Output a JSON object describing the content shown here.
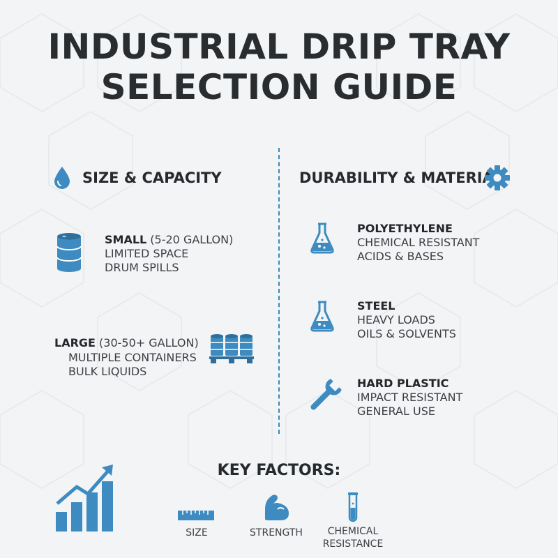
{
  "title": {
    "line1": "INDUSTRIAL DRIP TRAY",
    "line2": "SELECTION GUIDE"
  },
  "accent_color": "#3d8bc0",
  "left_section": {
    "heading": "SIZE & CAPACITY",
    "icon": "water-drop-icon",
    "small": {
      "lead": "SMALL",
      "detail": " (5-20 GALLON)",
      "lines": [
        "LIMITED SPACE",
        "DRUM SPILLS"
      ],
      "icon": "drum-icon"
    },
    "large": {
      "lead": "LARGE",
      "detail": " (30-50+ GALLON)",
      "lines": [
        "MULTIPLE CONTAINERS",
        "BULK LIQUIDS"
      ],
      "icon": "drums-on-pallet-icon"
    }
  },
  "right_section": {
    "heading": "DURABILITY & MATERIAL",
    "icon": "gear-icon",
    "items": [
      {
        "title": "POLYETHYLENE",
        "lines": [
          "CHEMICAL RESISTANT",
          "ACIDS & BASES"
        ],
        "icon": "flask-icon"
      },
      {
        "title": "STEEL",
        "lines": [
          "HEAVY LOADS",
          "OILS & SOLVENTS"
        ],
        "icon": "flask-icon"
      },
      {
        "title": "HARD PLASTIC",
        "lines": [
          "IMPACT RESISTANT",
          "GENERAL USE"
        ],
        "icon": "wrench-icon"
      }
    ]
  },
  "key_factors": {
    "heading": "KEY FACTORS:",
    "chart_icon": "growth-chart-icon",
    "factors": [
      {
        "label": "SIZE",
        "icon": "ruler-icon"
      },
      {
        "label": "STRENGTH",
        "icon": "flexed-arm-icon"
      },
      {
        "label": "CHEMICAL\nRESISTANCE",
        "icon": "test-tube-icon"
      }
    ]
  }
}
